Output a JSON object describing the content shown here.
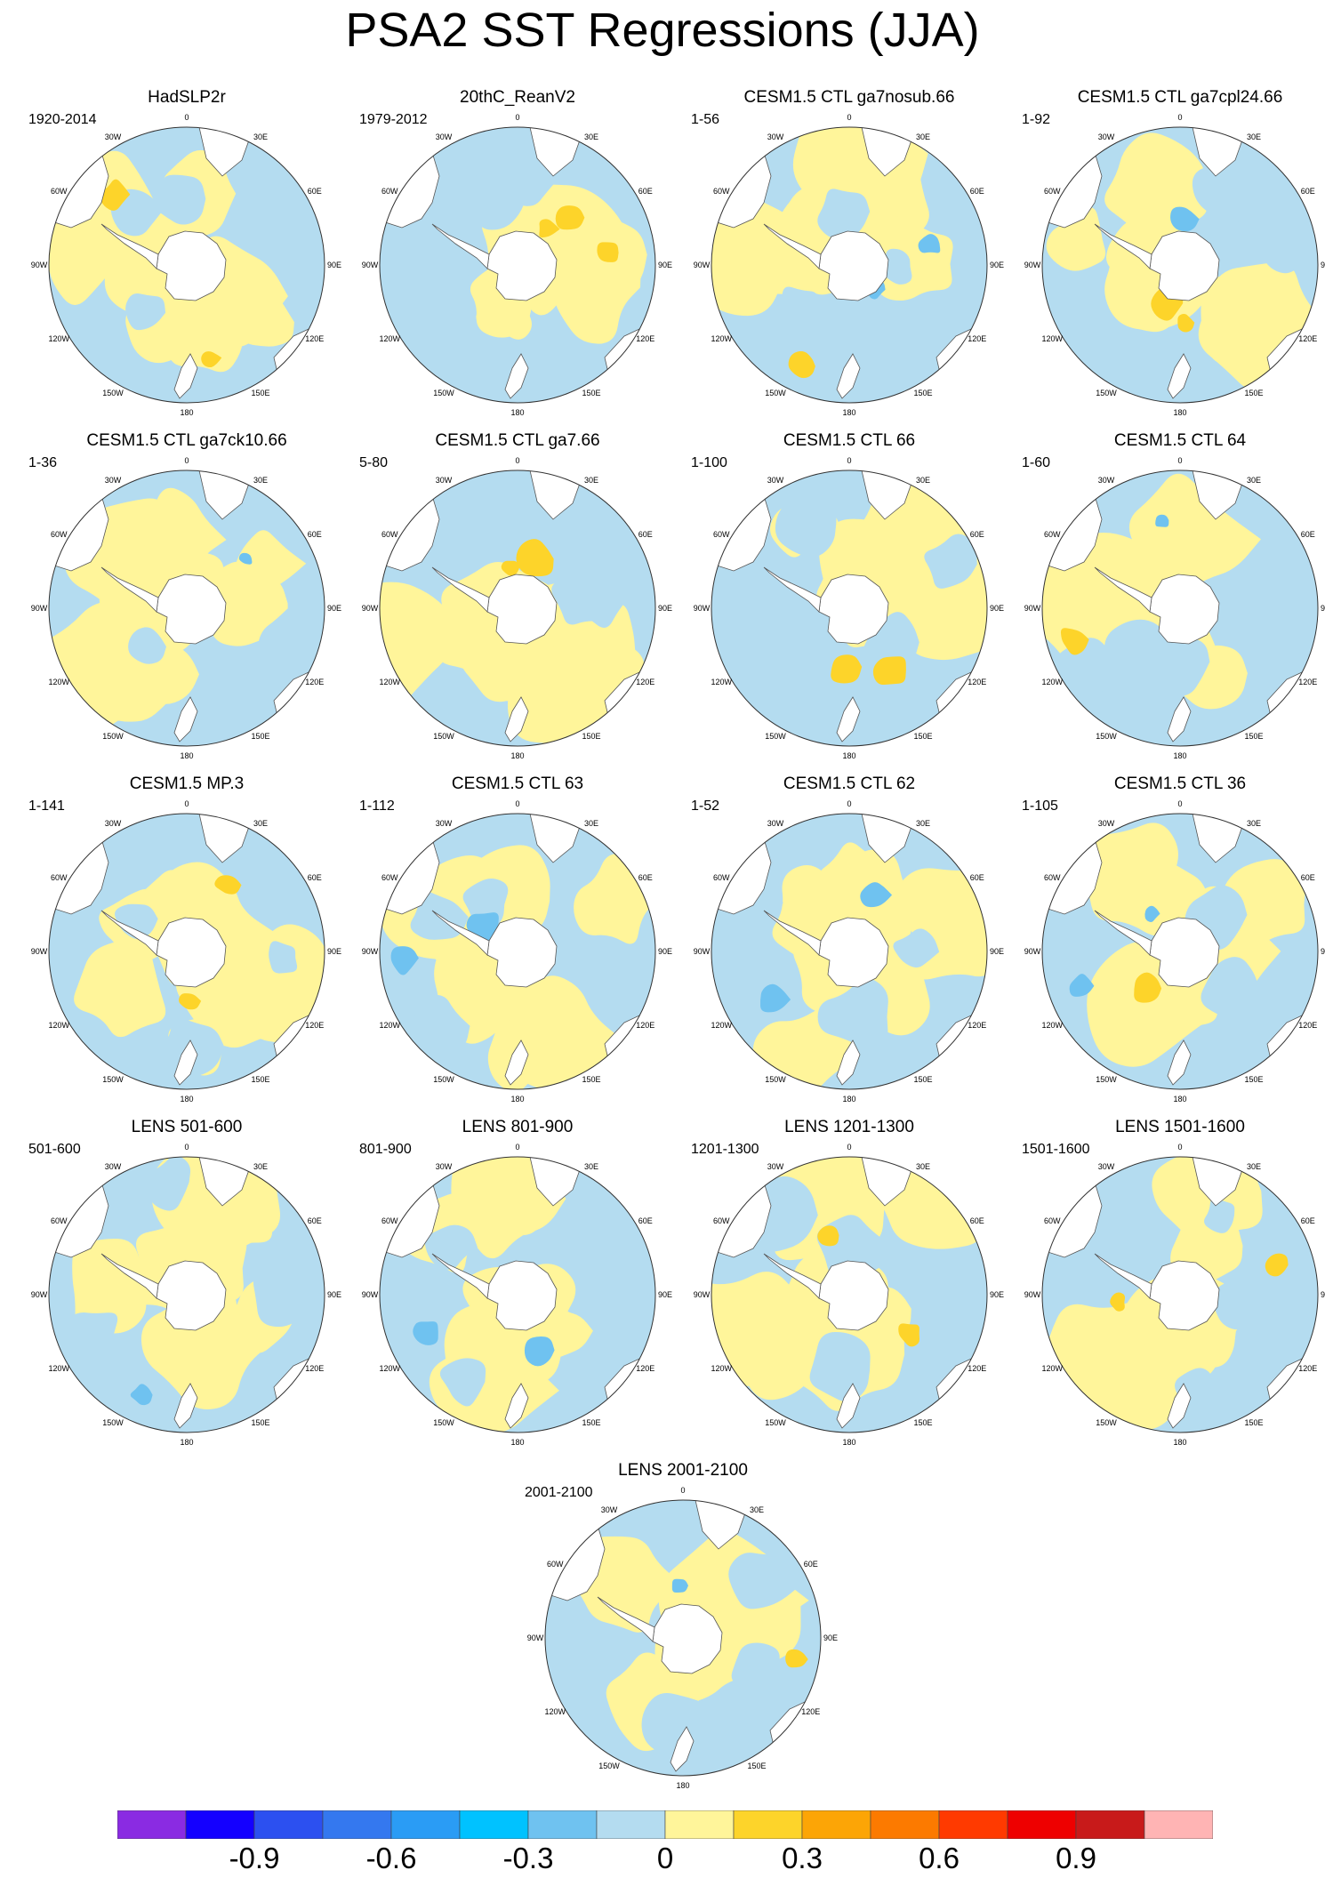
{
  "title": "PSA2 SST Regressions (JJA)",
  "longitude_labels": [
    "0",
    "30E",
    "60E",
    "90E",
    "120E",
    "150E",
    "180",
    "150W",
    "120W",
    "90W",
    "60W",
    "30W"
  ],
  "colors": {
    "land": "#ffffff",
    "coast": "#555555",
    "pos_weak": "#fff59a",
    "pos_mid": "#fdd42a",
    "pos_strong": "#fca506",
    "neg_weak": "#b4dcf0",
    "neg_mid": "#6fc2f0",
    "neg_strong": "#2c9cf0"
  },
  "panels": [
    {
      "title": "HadSLP2r",
      "period": "1920-2014"
    },
    {
      "title": "20thC_ReanV2",
      "period": "1979-2012"
    },
    {
      "title": "CESM1.5 CTL ga7nosub.66",
      "period": "1-56"
    },
    {
      "title": "CESM1.5 CTL ga7cpl24.66",
      "period": "1-92"
    },
    {
      "title": "CESM1.5 CTL ga7ck10.66",
      "period": "1-36"
    },
    {
      "title": "CESM1.5 CTL ga7.66",
      "period": "5-80"
    },
    {
      "title": "CESM1.5 CTL 66",
      "period": "1-100"
    },
    {
      "title": "CESM1.5 CTL 64",
      "period": "1-60"
    },
    {
      "title": "CESM1.5 MP.3",
      "period": "1-141"
    },
    {
      "title": "CESM1.5 CTL 63",
      "period": "1-112"
    },
    {
      "title": "CESM1.5 CTL 62",
      "period": "1-52"
    },
    {
      "title": "CESM1.5 CTL 36",
      "period": "1-105"
    },
    {
      "title": "LENS 501-600",
      "period": "501-600"
    },
    {
      "title": "LENS 801-900",
      "period": "801-900"
    },
    {
      "title": "LENS 1201-1300",
      "period": "1201-1300"
    },
    {
      "title": "LENS 1501-1600",
      "period": "1501-1600"
    },
    {
      "title": "LENS 2001-2100",
      "period": "2001-2100"
    }
  ],
  "colorbar": {
    "colors": [
      "#8a2be2",
      "#1400ff",
      "#2c50f0",
      "#3478ef",
      "#2a9cf5",
      "#00c2ff",
      "#6fc2f0",
      "#b4dcf0",
      "#fff59a",
      "#fdd42a",
      "#fca506",
      "#fc7a00",
      "#ff3a00",
      "#ee0000",
      "#c81a1a",
      "#ffb4b4"
    ],
    "labels": [
      {
        "text": "-0.9",
        "index": 2
      },
      {
        "text": "-0.6",
        "index": 4
      },
      {
        "text": "-0.3",
        "index": 6
      },
      {
        "text": "0",
        "index": 8
      },
      {
        "text": "0.3",
        "index": 10
      },
      {
        "text": "0.6",
        "index": 12
      },
      {
        "text": "0.9",
        "index": 14
      }
    ]
  }
}
